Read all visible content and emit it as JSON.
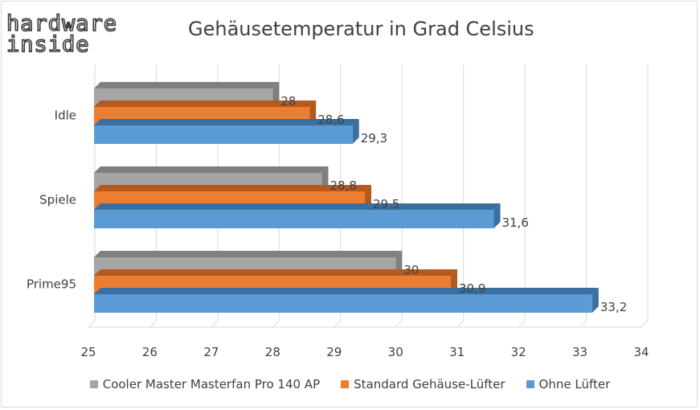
{
  "logo": {
    "line1": "hardware",
    "line2": "inside"
  },
  "chart_data": {
    "type": "bar",
    "orientation": "horizontal",
    "title": "Gehäusetemperatur in Grad Celsius",
    "categories": [
      "Idle",
      "Spiele",
      "Prime95"
    ],
    "series": [
      {
        "name": "Cooler Master Masterfan Pro 140 AP",
        "values": [
          28,
          28.8,
          30
        ],
        "labels": [
          "28",
          "28,8",
          "30"
        ],
        "color": "#a5a5a5",
        "side_color": "#7f7f7f"
      },
      {
        "name": "Standard Gehäuse-Lüfter",
        "values": [
          28.6,
          29.5,
          30.9
        ],
        "labels": [
          "28,6",
          "29,5",
          "30,9"
        ],
        "color": "#ed7d31",
        "side_color": "#b45a1f"
      },
      {
        "name": "Ohne Lüfter",
        "values": [
          29.3,
          31.6,
          33.2
        ],
        "labels": [
          "29,3",
          "31,6",
          "33,2"
        ],
        "color": "#5b9bd5",
        "side_color": "#3a6f9f"
      }
    ],
    "xlim": [
      25,
      34
    ],
    "xticks": [
      "25",
      "26",
      "27",
      "28",
      "29",
      "30",
      "31",
      "32",
      "33",
      "34"
    ],
    "grid": true,
    "legend_position": "bottom",
    "style": "3d"
  }
}
